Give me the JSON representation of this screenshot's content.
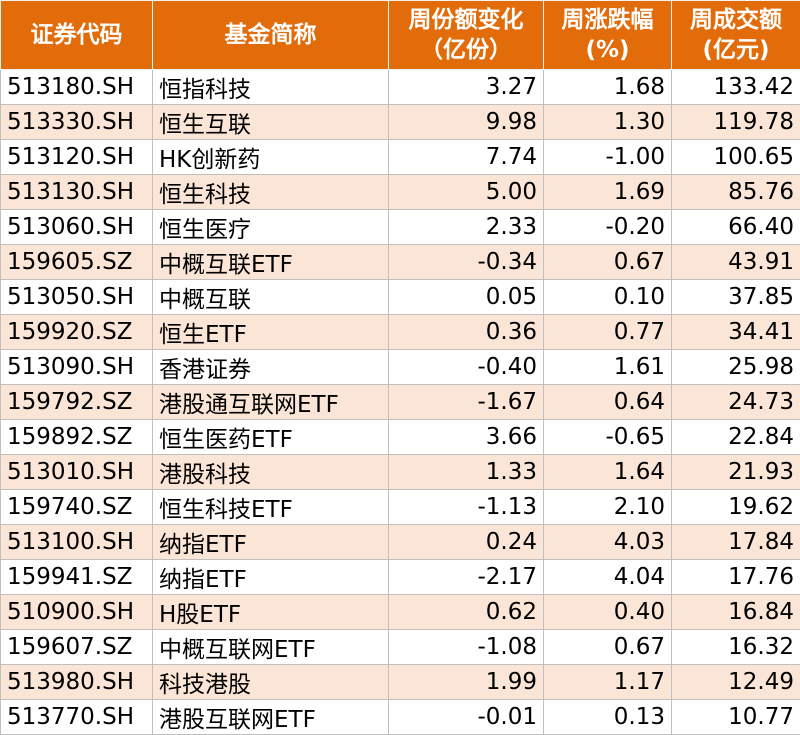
{
  "header": {
    "code": "证券代码",
    "name": "基金简称",
    "share_change_1": "周份额变化",
    "share_change_2": "（亿份）",
    "pct_change_1": "周涨跌幅",
    "pct_change_2": "(%)",
    "volume_1": "周成交额",
    "volume_2": "(亿元)"
  },
  "colors": {
    "header_bg": "#e26b0a",
    "header_text": "#ffffff",
    "stripe": "#fbe5d6"
  },
  "rows": [
    {
      "code": "513180.SH",
      "name": "恒指科技",
      "share_change": "3.27",
      "pct_change": "1.68",
      "volume": "133.42"
    },
    {
      "code": "513330.SH",
      "name": "恒生互联",
      "share_change": "9.98",
      "pct_change": "1.30",
      "volume": "119.78"
    },
    {
      "code": "513120.SH",
      "name": "HK创新药",
      "share_change": "7.74",
      "pct_change": "-1.00",
      "volume": "100.65"
    },
    {
      "code": "513130.SH",
      "name": "恒生科技",
      "share_change": "5.00",
      "pct_change": "1.69",
      "volume": "85.76"
    },
    {
      "code": "513060.SH",
      "name": "恒生医疗",
      "share_change": "2.33",
      "pct_change": "-0.20",
      "volume": "66.40"
    },
    {
      "code": "159605.SZ",
      "name": "中概互联ETF",
      "share_change": "-0.34",
      "pct_change": "0.67",
      "volume": "43.91"
    },
    {
      "code": "513050.SH",
      "name": "中概互联",
      "share_change": "0.05",
      "pct_change": "0.10",
      "volume": "37.85"
    },
    {
      "code": "159920.SZ",
      "name": "恒生ETF",
      "share_change": "0.36",
      "pct_change": "0.77",
      "volume": "34.41"
    },
    {
      "code": "513090.SH",
      "name": "香港证券",
      "share_change": "-0.40",
      "pct_change": "1.61",
      "volume": "25.98"
    },
    {
      "code": "159792.SZ",
      "name": "港股通互联网ETF",
      "share_change": "-1.67",
      "pct_change": "0.64",
      "volume": "24.73"
    },
    {
      "code": "159892.SZ",
      "name": "恒生医药ETF",
      "share_change": "3.66",
      "pct_change": "-0.65",
      "volume": "22.84"
    },
    {
      "code": "513010.SH",
      "name": "港股科技",
      "share_change": "1.33",
      "pct_change": "1.64",
      "volume": "21.93"
    },
    {
      "code": "159740.SZ",
      "name": "恒生科技ETF",
      "share_change": "-1.13",
      "pct_change": "2.10",
      "volume": "19.62"
    },
    {
      "code": "513100.SH",
      "name": "纳指ETF",
      "share_change": "0.24",
      "pct_change": "4.03",
      "volume": "17.84"
    },
    {
      "code": "159941.SZ",
      "name": "纳指ETF",
      "share_change": "-2.17",
      "pct_change": "4.04",
      "volume": "17.76"
    },
    {
      "code": "510900.SH",
      "name": "H股ETF",
      "share_change": "0.62",
      "pct_change": "0.40",
      "volume": "16.84"
    },
    {
      "code": "159607.SZ",
      "name": "中概互联网ETF",
      "share_change": "-1.08",
      "pct_change": "0.67",
      "volume": "16.32"
    },
    {
      "code": "513980.SH",
      "name": "科技港股",
      "share_change": "1.99",
      "pct_change": "1.17",
      "volume": "12.49"
    },
    {
      "code": "513770.SH",
      "name": "港股互联网ETF",
      "share_change": "-0.01",
      "pct_change": "0.13",
      "volume": "10.77"
    }
  ]
}
